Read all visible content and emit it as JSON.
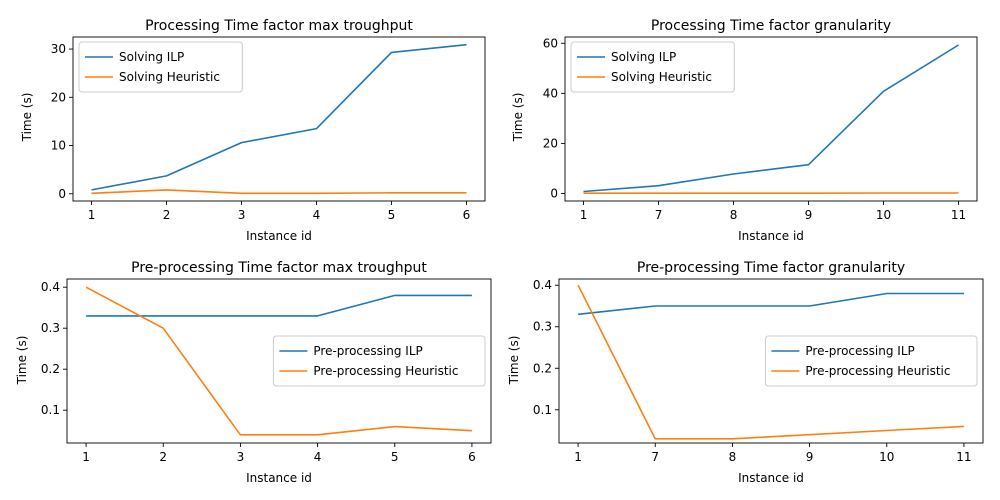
{
  "colors": {
    "series_1": "#1f77b4",
    "series_2": "#ff7f0e",
    "axis": "#000000",
    "legend_border": "#cccccc"
  },
  "chart_data": [
    {
      "type": "line",
      "title": "Processing Time factor max troughput",
      "xlabel": "Instance id",
      "ylabel": "Time (s)",
      "categories": [
        "1",
        "2",
        "3",
        "4",
        "5",
        "6"
      ],
      "ylim": [
        -1.5,
        32.5
      ],
      "yticks": [
        0,
        10,
        20,
        30
      ],
      "ytick_labels": [
        "0",
        "10",
        "20",
        "30"
      ],
      "legend_position": "upper-left",
      "series": [
        {
          "name": "Solving ILP",
          "values": [
            0.8,
            3.7,
            10.6,
            13.5,
            29.3,
            30.9
          ]
        },
        {
          "name": "Solving Heuristic",
          "values": [
            0.1,
            0.8,
            0.1,
            0.1,
            0.2,
            0.2
          ]
        }
      ]
    },
    {
      "type": "line",
      "title": "Processing Time factor granularity",
      "xlabel": "Instance id",
      "ylabel": "Time (s)",
      "categories": [
        "1",
        "7",
        "8",
        "9",
        "10",
        "11"
      ],
      "ylim": [
        -3,
        62.5
      ],
      "yticks": [
        0,
        20,
        40,
        60
      ],
      "ytick_labels": [
        "0",
        "20",
        "40",
        "60"
      ],
      "legend_position": "upper-left",
      "series": [
        {
          "name": "Solving ILP",
          "values": [
            0.8,
            3.1,
            7.8,
            11.5,
            40.8,
            59.3
          ]
        },
        {
          "name": "Solving Heuristic",
          "values": [
            0.1,
            0.1,
            0.1,
            0.1,
            0.2,
            0.2
          ]
        }
      ]
    },
    {
      "type": "line",
      "title": "Pre-processing Time factor max troughput",
      "xlabel": "Instance id",
      "ylabel": "Time (s)",
      "categories": [
        "1",
        "2",
        "3",
        "4",
        "5",
        "6"
      ],
      "ylim": [
        0.02,
        0.42
      ],
      "yticks": [
        0.1,
        0.2,
        0.3,
        0.4
      ],
      "ytick_labels": [
        "0.1",
        "0.2",
        "0.3",
        "0.4"
      ],
      "legend_position": "center-right",
      "series": [
        {
          "name": "Pre-processing ILP",
          "values": [
            0.33,
            0.33,
            0.33,
            0.33,
            0.38,
            0.38
          ]
        },
        {
          "name": "Pre-processing Heuristic",
          "values": [
            0.4,
            0.3,
            0.04,
            0.04,
            0.06,
            0.05
          ]
        }
      ]
    },
    {
      "type": "line",
      "title": "Pre-processing Time factor granularity",
      "xlabel": "Instance id",
      "ylabel": "Time (s)",
      "categories": [
        "1",
        "7",
        "8",
        "9",
        "10",
        "11"
      ],
      "ylim": [
        0.02,
        0.415
      ],
      "yticks": [
        0.1,
        0.2,
        0.3,
        0.4
      ],
      "ytick_labels": [
        "0.1",
        "0.2",
        "0.3",
        "0.4"
      ],
      "legend_position": "center-right",
      "series": [
        {
          "name": "Pre-processing ILP",
          "values": [
            0.33,
            0.35,
            0.35,
            0.35,
            0.38,
            0.38
          ]
        },
        {
          "name": "Pre-processing Heuristic",
          "values": [
            0.4,
            0.03,
            0.03,
            0.04,
            0.05,
            0.06
          ]
        }
      ]
    }
  ]
}
